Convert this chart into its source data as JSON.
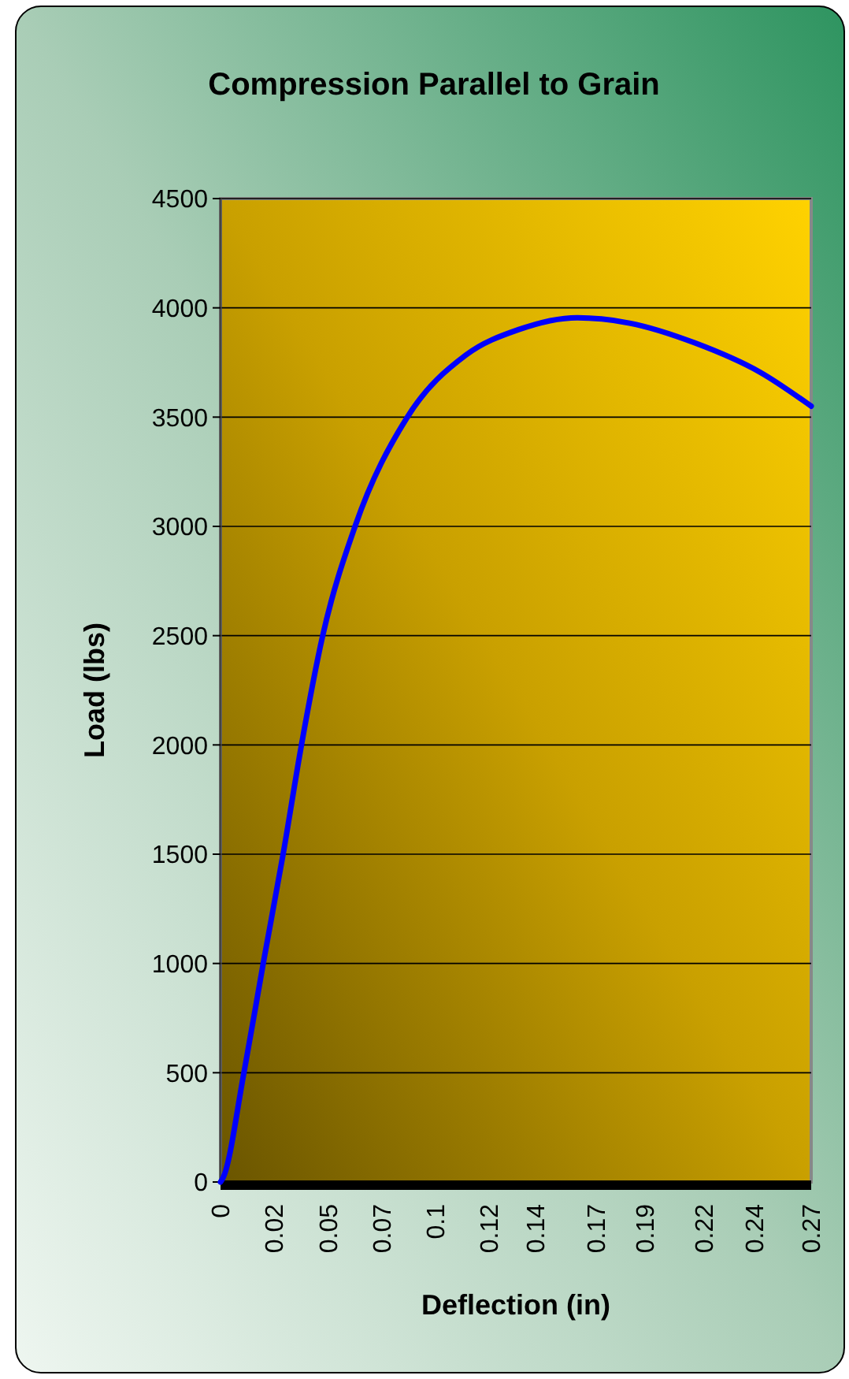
{
  "chart_data": {
    "type": "line",
    "title": "Compression Parallel to Grain",
    "xlabel": "Deflection (in)",
    "ylabel": "Load (lbs)",
    "series": [
      {
        "color": "#0000ff",
        "x": [
          0,
          0.0012,
          0.0107,
          0.0197,
          0.0287,
          0.037,
          0.0466,
          0.0615,
          0.0854,
          0.1123,
          0.1361,
          0.1631,
          0.187,
          0.2167,
          0.2467,
          0.27
        ],
        "values": [
          0,
          20,
          500,
          1010,
          1505,
          2000,
          2495,
          3000,
          3500,
          3785,
          3900,
          3955,
          3930,
          3840,
          3705,
          3550
        ]
      }
    ],
    "xlim": [
      0,
      0.27
    ],
    "ylim": [
      0,
      4500
    ],
    "xticks": [
      0,
      {
        "value": 0.0245,
        "label": "0.02"
      },
      {
        "value": 0.0491,
        "label": "0.05"
      },
      {
        "value": 0.0736,
        "label": "0.07"
      },
      {
        "value": 0.0982,
        "label": "0.1"
      },
      {
        "value": 0.1227,
        "label": "0.12"
      },
      {
        "value": 0.144,
        "label": "0.14"
      },
      {
        "value": 0.1718,
        "label": "0.17"
      },
      {
        "value": 0.194,
        "label": "0.19"
      },
      {
        "value": 0.2209,
        "label": "0.22"
      },
      {
        "value": 0.244,
        "label": "0.24"
      },
      0.27
    ],
    "yticks": [
      0,
      500,
      1000,
      1500,
      2000,
      2500,
      3000,
      3500,
      4000,
      4500
    ],
    "grid": "y",
    "marker": "none",
    "line_style": "solid"
  }
}
